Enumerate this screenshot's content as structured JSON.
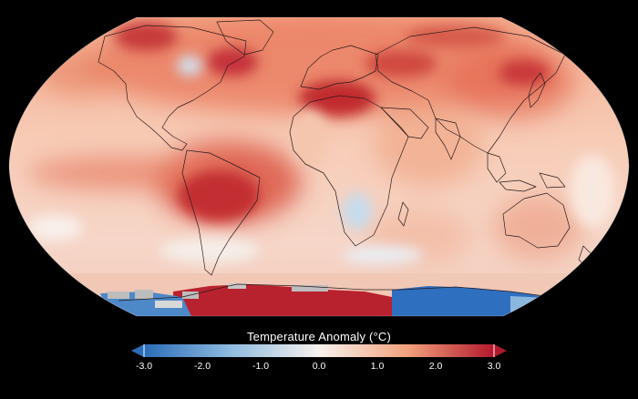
{
  "legend": {
    "title": "Temperature Anomaly (°C)",
    "ticks": [
      "-3.0",
      "-2.0",
      "-1.0",
      "0.0",
      "1.0",
      "2.0",
      "3.0"
    ],
    "min": -3.0,
    "max": 3.0,
    "extend": "both"
  },
  "colors": {
    "background": "#000000",
    "cold_end": "#2b6cb8",
    "mid_cold": "#8fbce0",
    "neutral": "#f8f2ee",
    "mid_warm": "#f2a27d",
    "warm_end": "#b2182b",
    "no_data": "#bdbdbd"
  },
  "map": {
    "projection": "robinson",
    "outline_color": "#2a1a1a"
  }
}
